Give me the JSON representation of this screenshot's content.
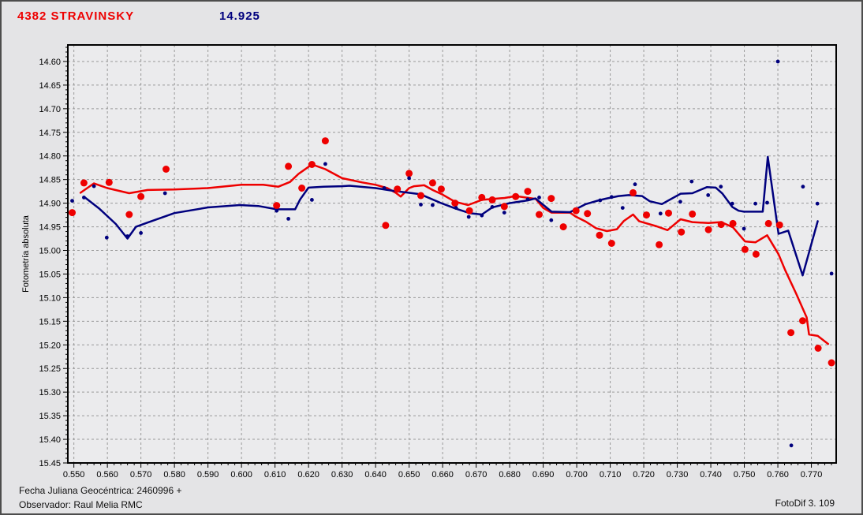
{
  "header": {
    "title": "4382 STRAVINSKY",
    "value": "14.925"
  },
  "footer": {
    "line1": "Fecha Juliana Geocéntrica: 2460996 +",
    "line2": "Observador: Raul Melia RMC",
    "app_version": "FotoDif 3. 109"
  },
  "colors": {
    "red": "#ee0000",
    "blue": "#00007e",
    "grid": "#999999",
    "frame": "#000000",
    "plot_bg": "#ebebed",
    "page_bg": "#e4e4e6",
    "text": "#000000"
  },
  "chart_data": {
    "type": "scatter",
    "title": "4382 STRAVINSKY",
    "subtitle": "14.925",
    "xlabel": "",
    "ylabel": "Fotometría absoluta",
    "xlim": [
      0.5482,
      0.7774
    ],
    "ylim_top_to_bottom": [
      14.565,
      15.45
    ],
    "y_axis_inverted_magnitudes": true,
    "grid": true,
    "x_ticks": [
      0.55,
      0.56,
      0.57,
      0.58,
      0.59,
      0.6,
      0.61,
      0.62,
      0.63,
      0.64,
      0.65,
      0.66,
      0.67,
      0.68,
      0.69,
      0.7,
      0.71,
      0.72,
      0.73,
      0.74,
      0.75,
      0.76,
      0.77
    ],
    "y_ticks": [
      14.6,
      14.65,
      14.7,
      14.75,
      14.8,
      14.85,
      14.9,
      14.95,
      15.0,
      15.05,
      15.1,
      15.15,
      15.2,
      15.25,
      15.3,
      15.35,
      15.4,
      15.45
    ],
    "x_minor_step": 0.002,
    "y_minor_step": 0.01,
    "series": [
      {
        "name": "target-measurements",
        "kind": "points",
        "color_key": "red",
        "marker_radius": 4.5,
        "points": [
          [
            0.5495,
            14.92
          ],
          [
            0.553,
            14.857
          ],
          [
            0.5605,
            14.856
          ],
          [
            0.5665,
            14.924
          ],
          [
            0.57,
            14.886
          ],
          [
            0.5775,
            14.828
          ],
          [
            0.6105,
            14.905
          ],
          [
            0.614,
            14.822
          ],
          [
            0.618,
            14.868
          ],
          [
            0.621,
            14.818
          ],
          [
            0.625,
            14.768
          ],
          [
            0.643,
            14.947
          ],
          [
            0.6465,
            14.87
          ],
          [
            0.65,
            14.837
          ],
          [
            0.6535,
            14.884
          ],
          [
            0.657,
            14.857
          ],
          [
            0.6596,
            14.87
          ],
          [
            0.6637,
            14.9
          ],
          [
            0.668,
            14.916
          ],
          [
            0.6717,
            14.888
          ],
          [
            0.6748,
            14.893
          ],
          [
            0.6784,
            14.907
          ],
          [
            0.6818,
            14.886
          ],
          [
            0.6854,
            14.875
          ],
          [
            0.6888,
            14.924
          ],
          [
            0.6924,
            14.89
          ],
          [
            0.696,
            14.95
          ],
          [
            0.6998,
            14.916
          ],
          [
            0.7032,
            14.922
          ],
          [
            0.7068,
            14.968
          ],
          [
            0.7104,
            14.985
          ],
          [
            0.7168,
            14.878
          ],
          [
            0.7208,
            14.925
          ],
          [
            0.7246,
            14.988
          ],
          [
            0.7274,
            14.921
          ],
          [
            0.7312,
            14.961
          ],
          [
            0.7345,
            14.923
          ],
          [
            0.7393,
            14.956
          ],
          [
            0.7431,
            14.945
          ],
          [
            0.7466,
            14.943
          ],
          [
            0.7502,
            14.998
          ],
          [
            0.7535,
            15.008
          ],
          [
            0.7572,
            14.943
          ],
          [
            0.7605,
            14.946
          ],
          [
            0.7639,
            15.174
          ],
          [
            0.7674,
            15.149
          ],
          [
            0.772,
            15.207
          ],
          [
            0.776,
            15.238
          ]
        ]
      },
      {
        "name": "comparison-measurements",
        "kind": "points",
        "color_key": "blue",
        "marker_radius": 2.4,
        "points": [
          [
            0.5495,
            14.895
          ],
          [
            0.553,
            14.888
          ],
          [
            0.556,
            14.864
          ],
          [
            0.5598,
            14.973
          ],
          [
            0.566,
            14.97
          ],
          [
            0.57,
            14.963
          ],
          [
            0.5772,
            14.879
          ],
          [
            0.6105,
            14.916
          ],
          [
            0.614,
            14.933
          ],
          [
            0.621,
            14.893
          ],
          [
            0.625,
            14.817
          ],
          [
            0.6426,
            14.868
          ],
          [
            0.65,
            14.847
          ],
          [
            0.6535,
            14.903
          ],
          [
            0.657,
            14.904
          ],
          [
            0.664,
            14.91
          ],
          [
            0.6678,
            14.929
          ],
          [
            0.6717,
            14.926
          ],
          [
            0.6748,
            14.908
          ],
          [
            0.6784,
            14.92
          ],
          [
            0.6854,
            14.892
          ],
          [
            0.6888,
            14.888
          ],
          [
            0.6924,
            14.936
          ],
          [
            0.707,
            14.894
          ],
          [
            0.7104,
            14.887
          ],
          [
            0.7137,
            14.91
          ],
          [
            0.7174,
            14.86
          ],
          [
            0.725,
            14.922
          ],
          [
            0.7309,
            14.897
          ],
          [
            0.7343,
            14.854
          ],
          [
            0.7392,
            14.883
          ],
          [
            0.743,
            14.865
          ],
          [
            0.7464,
            14.901
          ],
          [
            0.7499,
            14.954
          ],
          [
            0.7533,
            14.901
          ],
          [
            0.7568,
            14.899
          ],
          [
            0.76,
            14.6
          ],
          [
            0.764,
            15.413
          ],
          [
            0.7675,
            14.865
          ],
          [
            0.7718,
            14.901
          ],
          [
            0.776,
            15.049
          ]
        ]
      },
      {
        "name": "target-smoothed-line",
        "kind": "line",
        "color_key": "red",
        "width": 2.5,
        "points": [
          [
            0.552,
            14.878
          ],
          [
            0.556,
            14.858
          ],
          [
            0.56,
            14.868
          ],
          [
            0.5665,
            14.879
          ],
          [
            0.572,
            14.872
          ],
          [
            0.58,
            14.871
          ],
          [
            0.59,
            14.868
          ],
          [
            0.6,
            14.861
          ],
          [
            0.6065,
            14.861
          ],
          [
            0.611,
            14.865
          ],
          [
            0.6145,
            14.855
          ],
          [
            0.617,
            14.838
          ],
          [
            0.621,
            14.818
          ],
          [
            0.625,
            14.828
          ],
          [
            0.63,
            14.847
          ],
          [
            0.636,
            14.856
          ],
          [
            0.64,
            14.861
          ],
          [
            0.6435,
            14.868
          ],
          [
            0.646,
            14.878
          ],
          [
            0.6475,
            14.886
          ],
          [
            0.65,
            14.868
          ],
          [
            0.6515,
            14.864
          ],
          [
            0.6545,
            14.862
          ],
          [
            0.657,
            14.872
          ],
          [
            0.66,
            14.882
          ],
          [
            0.6637,
            14.897
          ],
          [
            0.6676,
            14.904
          ],
          [
            0.6717,
            14.893
          ],
          [
            0.675,
            14.891
          ],
          [
            0.6785,
            14.889
          ],
          [
            0.6818,
            14.885
          ],
          [
            0.6878,
            14.891
          ],
          [
            0.69,
            14.91
          ],
          [
            0.6925,
            14.92
          ],
          [
            0.698,
            14.92
          ],
          [
            0.6996,
            14.928
          ],
          [
            0.7027,
            14.939
          ],
          [
            0.7058,
            14.953
          ],
          [
            0.709,
            14.959
          ],
          [
            0.712,
            14.955
          ],
          [
            0.714,
            14.938
          ],
          [
            0.7168,
            14.924
          ],
          [
            0.7186,
            14.938
          ],
          [
            0.7239,
            14.949
          ],
          [
            0.7271,
            14.957
          ],
          [
            0.731,
            14.934
          ],
          [
            0.7345,
            14.94
          ],
          [
            0.7393,
            14.942
          ],
          [
            0.7431,
            14.94
          ],
          [
            0.7466,
            14.951
          ],
          [
            0.7502,
            14.981
          ],
          [
            0.7533,
            14.983
          ],
          [
            0.7568,
            14.968
          ],
          [
            0.7602,
            15.008
          ],
          [
            0.7622,
            15.042
          ],
          [
            0.7655,
            15.092
          ],
          [
            0.7686,
            15.142
          ],
          [
            0.7693,
            15.178
          ],
          [
            0.7719,
            15.181
          ],
          [
            0.775,
            15.198
          ]
        ]
      },
      {
        "name": "comparison-smoothed-line",
        "kind": "line",
        "color_key": "blue",
        "width": 2.5,
        "points": [
          [
            0.5533,
            14.888
          ],
          [
            0.5575,
            14.911
          ],
          [
            0.5625,
            14.944
          ],
          [
            0.566,
            14.975
          ],
          [
            0.5685,
            14.95
          ],
          [
            0.572,
            14.941
          ],
          [
            0.58,
            14.921
          ],
          [
            0.59,
            14.909
          ],
          [
            0.5995,
            14.904
          ],
          [
            0.605,
            14.906
          ],
          [
            0.6105,
            14.913
          ],
          [
            0.616,
            14.913
          ],
          [
            0.6175,
            14.892
          ],
          [
            0.62,
            14.867
          ],
          [
            0.6245,
            14.865
          ],
          [
            0.63,
            14.864
          ],
          [
            0.6322,
            14.863
          ],
          [
            0.64,
            14.868
          ],
          [
            0.6455,
            14.874
          ],
          [
            0.651,
            14.879
          ],
          [
            0.6533,
            14.881
          ],
          [
            0.6596,
            14.9
          ],
          [
            0.6637,
            14.911
          ],
          [
            0.668,
            14.921
          ],
          [
            0.6717,
            14.924
          ],
          [
            0.6748,
            14.909
          ],
          [
            0.6799,
            14.9
          ],
          [
            0.6855,
            14.894
          ],
          [
            0.6877,
            14.89
          ],
          [
            0.6925,
            14.918
          ],
          [
            0.698,
            14.919
          ],
          [
            0.7027,
            14.902
          ],
          [
            0.7066,
            14.894
          ],
          [
            0.709,
            14.89
          ],
          [
            0.7125,
            14.885
          ],
          [
            0.7155,
            14.883
          ],
          [
            0.7195,
            14.885
          ],
          [
            0.7218,
            14.896
          ],
          [
            0.7254,
            14.902
          ],
          [
            0.731,
            14.88
          ],
          [
            0.7345,
            14.879
          ],
          [
            0.7388,
            14.866
          ],
          [
            0.7415,
            14.867
          ],
          [
            0.7435,
            14.88
          ],
          [
            0.7464,
            14.908
          ],
          [
            0.7483,
            14.916
          ],
          [
            0.7499,
            14.918
          ],
          [
            0.7555,
            14.918
          ],
          [
            0.757,
            14.802
          ],
          [
            0.7602,
            14.965
          ],
          [
            0.7631,
            14.958
          ],
          [
            0.7674,
            15.053
          ],
          [
            0.7719,
            14.938
          ]
        ]
      }
    ]
  }
}
